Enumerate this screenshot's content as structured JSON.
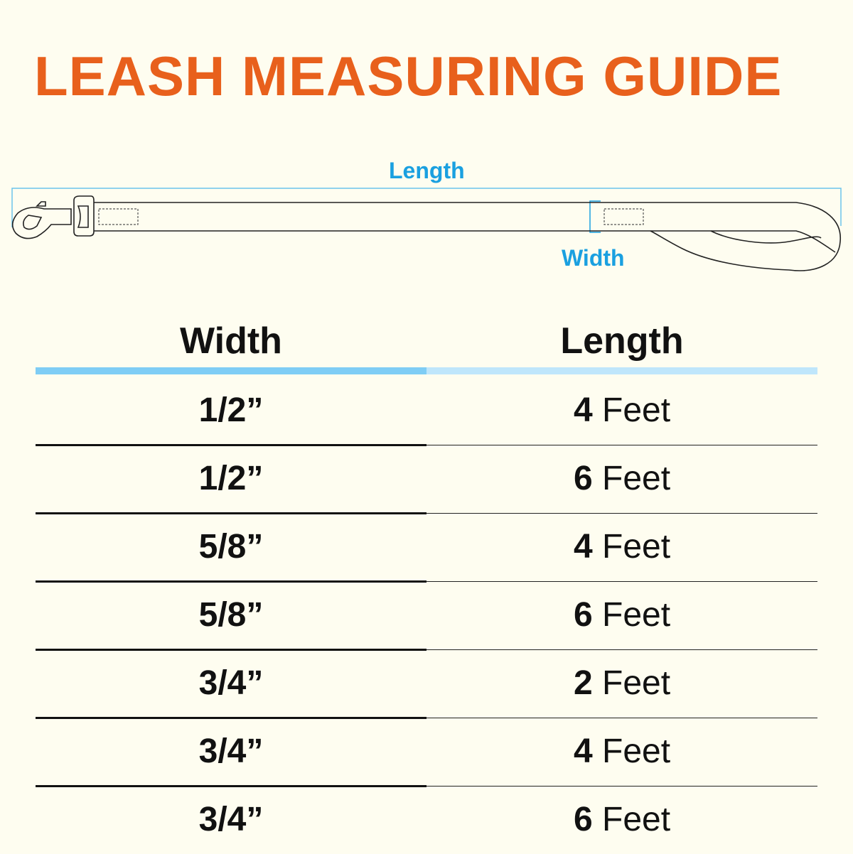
{
  "title": "LEASH MEASURING GUIDE",
  "diagram": {
    "length_label": "Length",
    "width_label": "Width",
    "accent": "#1aa0e0"
  },
  "table": {
    "headers": [
      "Width",
      "Length"
    ],
    "rows": [
      {
        "width": "1/2”",
        "length_num": "4",
        "length_unit": "Feet"
      },
      {
        "width": "1/2”",
        "length_num": "6",
        "length_unit": "Feet"
      },
      {
        "width": "5/8”",
        "length_num": "4",
        "length_unit": "Feet"
      },
      {
        "width": "5/8”",
        "length_num": "6",
        "length_unit": "Feet"
      },
      {
        "width": "3/4”",
        "length_num": "2",
        "length_unit": "Feet"
      },
      {
        "width": "3/4”",
        "length_num": "4",
        "length_unit": "Feet"
      },
      {
        "width": "3/4”",
        "length_num": "6",
        "length_unit": "Feet"
      }
    ]
  },
  "colors": {
    "title": "#e8601c",
    "header_bar_left": "#7fcdf5",
    "header_bar_right": "#bfe6fb",
    "background": "#fefdf0"
  }
}
